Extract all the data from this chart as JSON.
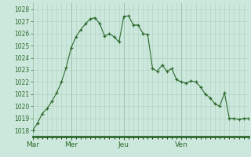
{
  "x_labels": [
    "Mar",
    "Mer",
    "Jeu",
    "Ven"
  ],
  "ylim": [
    1017.5,
    1028.5
  ],
  "yticks": [
    1018,
    1019,
    1020,
    1021,
    1022,
    1023,
    1024,
    1025,
    1026,
    1027,
    1028
  ],
  "background_color": "#cce8dc",
  "grid_color": "#aacfbe",
  "line_color": "#2d6a2d",
  "marker_color": "#2d6a2d",
  "y_values": [
    1018.0,
    1018.6,
    1019.4,
    1019.8,
    1020.4,
    1021.1,
    1022.0,
    1023.2,
    1024.8,
    1025.7,
    1026.3,
    1026.8,
    1027.2,
    1027.3,
    1026.8,
    1025.8,
    1026.0,
    1025.7,
    1025.3,
    1027.4,
    1027.45,
    1026.7,
    1026.7,
    1026.0,
    1025.9,
    1023.1,
    1022.9,
    1023.4,
    1022.9,
    1023.1,
    1022.2,
    1022.0,
    1021.9,
    1022.1,
    1022.0,
    1021.6,
    1021.0,
    1020.7,
    1020.2,
    1020.0,
    1021.1,
    1019.0,
    1019.0,
    1018.9,
    1019.0,
    1019.0
  ],
  "day_positions": [
    0,
    8,
    19,
    31
  ],
  "tick_label_color": "#2d6a2d",
  "spine_color": "#2d6a2d"
}
